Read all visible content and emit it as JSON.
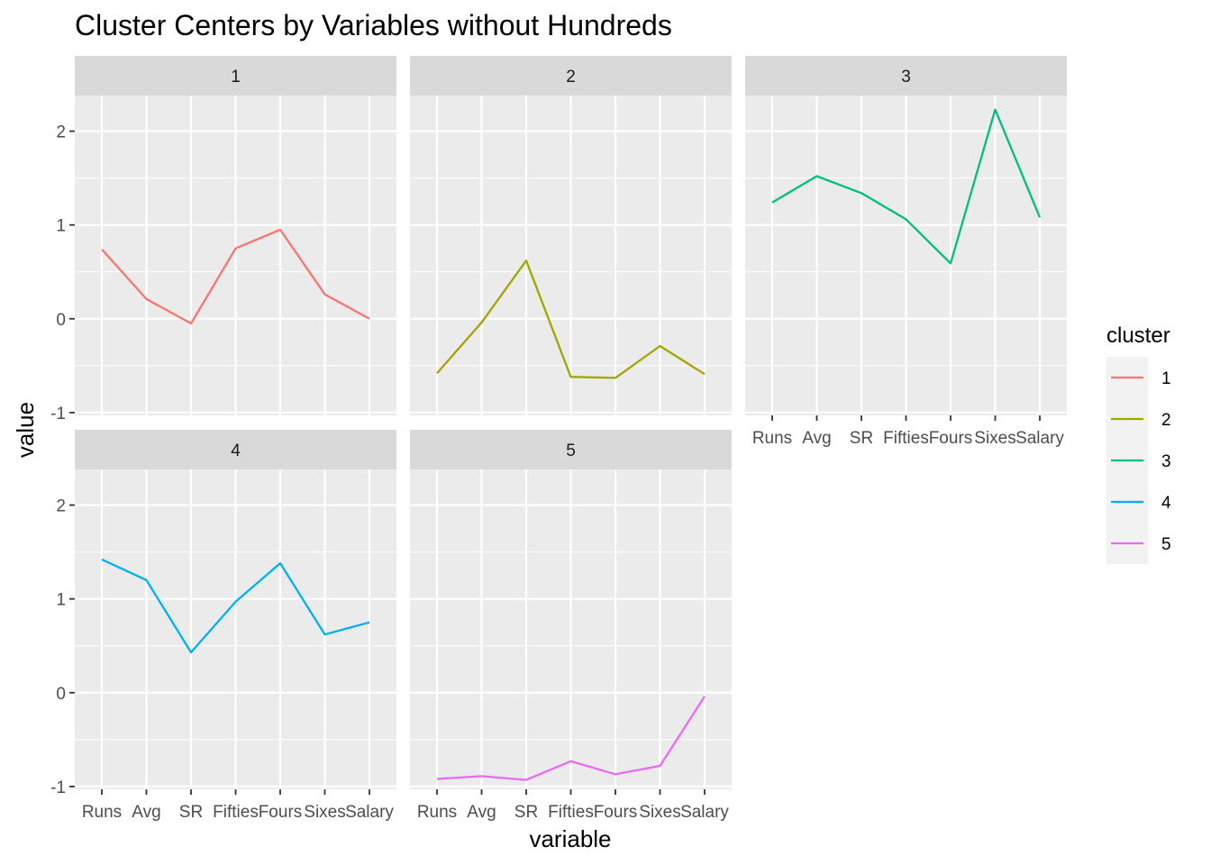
{
  "chart_data": {
    "type": "line",
    "title": "Cluster Centers by Variables without Hundreds",
    "xlabel": "variable",
    "ylabel": "value",
    "categories": [
      "Runs",
      "Avg",
      "SR",
      "Fifties",
      "Fours",
      "Sixes",
      "Salary"
    ],
    "y_ticks": [
      -1,
      0,
      1,
      2
    ],
    "ylim": [
      -1.03,
      2.38
    ],
    "facets": [
      "1",
      "2",
      "3",
      "4",
      "5"
    ],
    "legend_title": "cluster",
    "series": [
      {
        "name": "1",
        "color": "#F8766D",
        "values": [
          0.74,
          0.21,
          -0.05,
          0.75,
          0.95,
          0.26,
          0.0
        ]
      },
      {
        "name": "2",
        "color": "#A3A500",
        "values": [
          -0.58,
          -0.04,
          0.62,
          -0.62,
          -0.63,
          -0.29,
          -0.59
        ]
      },
      {
        "name": "3",
        "color": "#00BF7D",
        "values": [
          1.24,
          1.52,
          1.34,
          1.06,
          0.59,
          2.23,
          1.08
        ]
      },
      {
        "name": "4",
        "color": "#00B0F6",
        "values": [
          1.42,
          1.2,
          0.43,
          0.97,
          1.38,
          0.62,
          0.75
        ]
      },
      {
        "name": "5",
        "color": "#E76BF3",
        "values": [
          -0.92,
          -0.89,
          -0.93,
          -0.73,
          -0.87,
          -0.78,
          -0.04
        ]
      }
    ]
  }
}
